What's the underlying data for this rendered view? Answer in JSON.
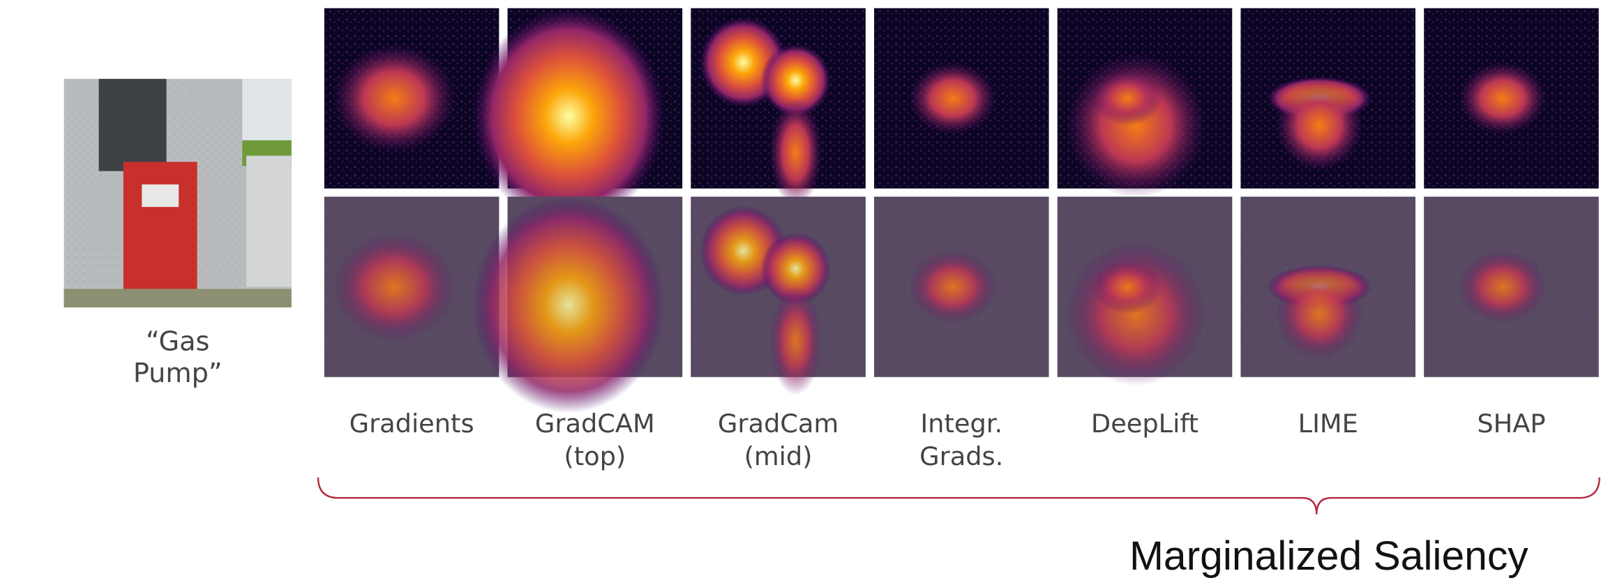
{
  "caption": {
    "lines": [
      "“Gas",
      "Pump”"
    ]
  },
  "methods": [
    {
      "lines": [
        "Gradients"
      ]
    },
    {
      "lines": [
        "GradCAM",
        "(top)"
      ]
    },
    {
      "lines": [
        "GradCam",
        "(mid)"
      ]
    },
    {
      "lines": [
        "Integr.",
        "Grads."
      ]
    },
    {
      "lines": [
        "DeepLift"
      ]
    },
    {
      "lines": [
        "LIME"
      ]
    },
    {
      "lines": [
        "SHAP"
      ]
    }
  ],
  "group_label": "Marginalized Saliency"
}
